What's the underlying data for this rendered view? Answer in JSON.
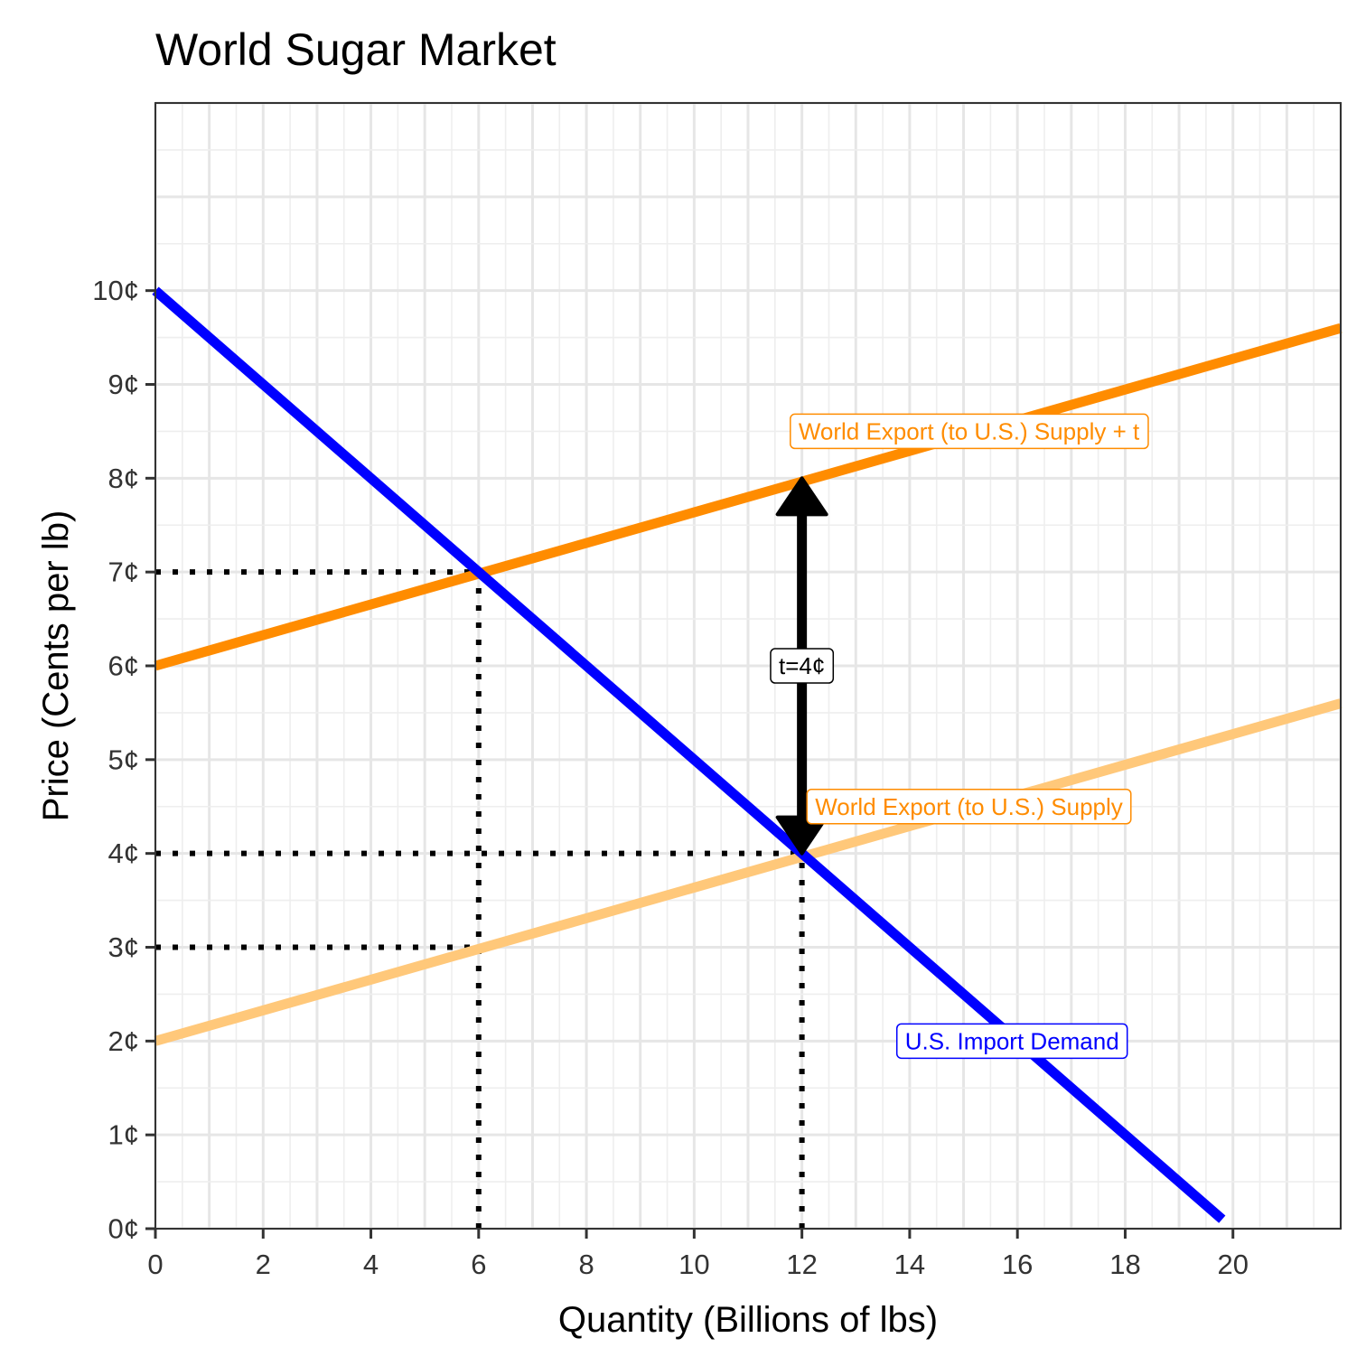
{
  "chart_data": {
    "type": "line",
    "title": "World Sugar Market",
    "xlabel": "Quantity (Billions of lbs)",
    "ylabel": "Price (Cents per lb)",
    "xlim": [
      0,
      22
    ],
    "ylim": [
      0,
      12
    ],
    "x_ticks": [
      0,
      2,
      4,
      6,
      8,
      10,
      12,
      14,
      16,
      18,
      20
    ],
    "x_tick_labels": [
      "0",
      "2",
      "4",
      "6",
      "8",
      "10",
      "12",
      "14",
      "16",
      "18",
      "20"
    ],
    "y_ticks": [
      0,
      1,
      2,
      3,
      4,
      5,
      6,
      7,
      8,
      9,
      10
    ],
    "y_tick_labels": [
      "0¢",
      "1¢",
      "2¢",
      "3¢",
      "4¢",
      "5¢",
      "6¢",
      "7¢",
      "8¢",
      "9¢",
      "10¢"
    ],
    "grid": true,
    "series": [
      {
        "name": "U.S. Import Demand",
        "color": "#0000ff",
        "x": [
          0,
          19.8
        ],
        "y": [
          10,
          0.1
        ]
      },
      {
        "name": "World Export (to U.S.) Supply + t",
        "color": "#ff8c00",
        "x": [
          0,
          22
        ],
        "y": [
          6,
          9.6
        ]
      },
      {
        "name": "World Export (to U.S.) Supply",
        "color": "#ffc87a",
        "x": [
          0,
          22
        ],
        "y": [
          2,
          5.6
        ]
      }
    ],
    "reference_lines": [
      {
        "x": [
          0,
          6
        ],
        "y": [
          7,
          7
        ]
      },
      {
        "x": [
          0,
          12
        ],
        "y": [
          4,
          4
        ]
      },
      {
        "x": [
          0,
          6
        ],
        "y": [
          3,
          3
        ]
      },
      {
        "x": [
          6,
          6
        ],
        "y": [
          0,
          7
        ]
      },
      {
        "x": [
          12,
          12
        ],
        "y": [
          0,
          4
        ]
      }
    ],
    "tax_arrow": {
      "x": 12,
      "y_from": 4,
      "y_to": 8,
      "label": "t=4¢",
      "label_y": 6
    },
    "annotations": [
      {
        "text": "World Export (to U.S.) Supply + t",
        "x": 15.1,
        "y": 8.5,
        "color": "#ff8c00"
      },
      {
        "text": "World Export (to U.S.) Supply",
        "x": 15.1,
        "y": 4.5,
        "color": "#ff8c00"
      },
      {
        "text": "U.S. Import Demand",
        "x": 15.9,
        "y": 2.0,
        "color": "#0000ff"
      }
    ]
  }
}
